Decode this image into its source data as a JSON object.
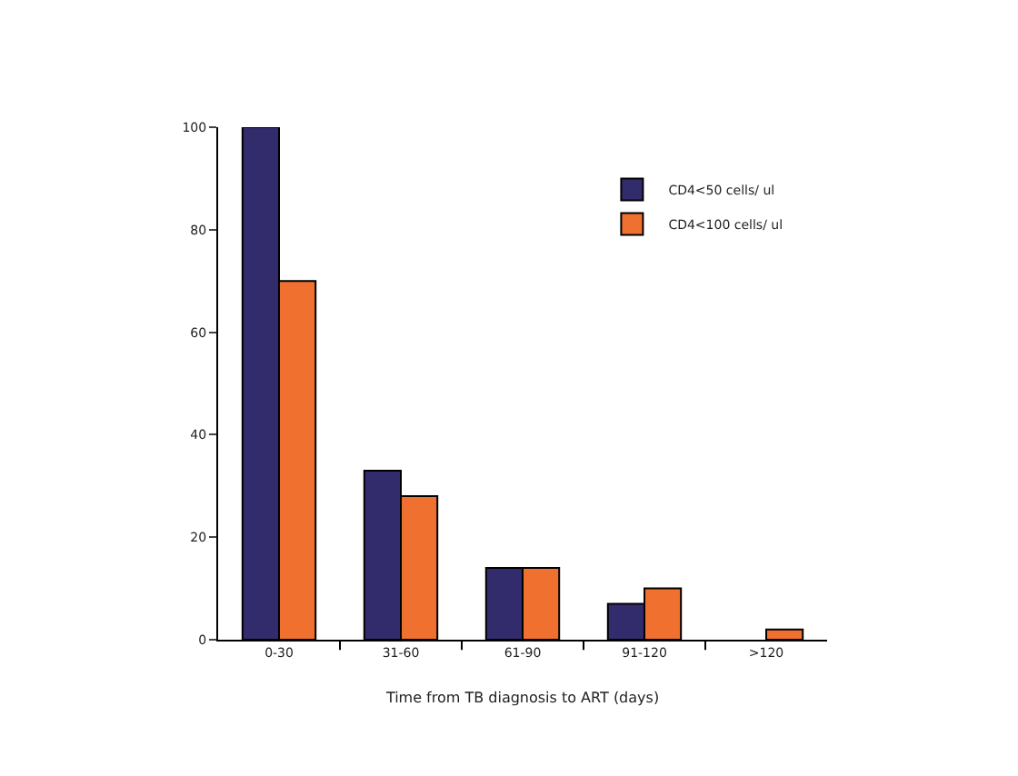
{
  "chart_data": {
    "type": "bar",
    "xlabel": "Time from TB diagnosis to ART (days)",
    "categories": [
      "0-30",
      "31-60",
      "61-90",
      "91-120",
      ">120"
    ],
    "series": [
      {
        "name": "CD4<50 cells/ ul",
        "color": "#332c6c",
        "values": [
          100,
          33,
          14,
          7,
          null
        ]
      },
      {
        "name": "CD4<100 cells/ ul",
        "color": "#f07030",
        "values": [
          70,
          28,
          14,
          10,
          2
        ]
      }
    ],
    "ylim": [
      0,
      100
    ],
    "yticks": [
      0,
      20,
      40,
      60,
      80,
      100
    ],
    "legend": "top right"
  }
}
